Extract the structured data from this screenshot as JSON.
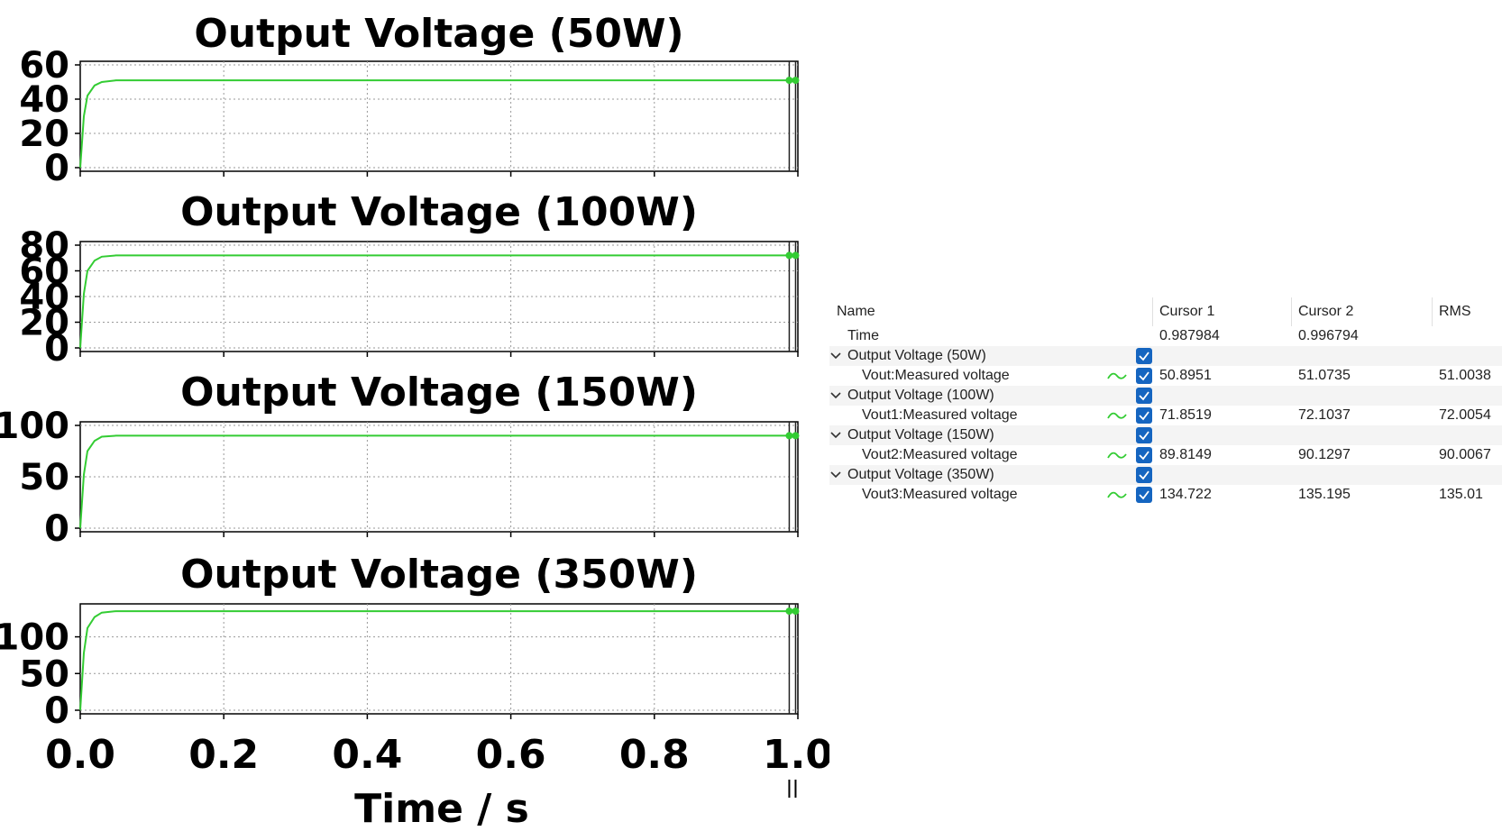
{
  "charts": [
    {
      "title": "Output Voltage (50W)",
      "yticks": [
        "60",
        "40",
        "20",
        "0"
      ]
    },
    {
      "title": "Output Voltage (100W)",
      "yticks": [
        "80",
        "60",
        "40",
        "20",
        "0"
      ]
    },
    {
      "title": "Output Voltage (150W)",
      "yticks": [
        "100",
        "50",
        "0"
      ]
    },
    {
      "title": "Output Voltage (350W)",
      "yticks": [
        "100",
        "50",
        "0"
      ]
    }
  ],
  "xaxis": {
    "label": "Time / s",
    "ticks": [
      "0.0",
      "0.2",
      "0.4",
      "0.6",
      "0.8",
      "1.0"
    ]
  },
  "chart_data": [
    {
      "type": "line",
      "title": "Output Voltage (50W)",
      "xlabel": "",
      "ylabel": "",
      "xlim": [
        0,
        1
      ],
      "ylim": [
        0,
        60
      ],
      "yticks": [
        0,
        20,
        40,
        60
      ],
      "grid": true,
      "series": [
        {
          "x": [
            0,
            0.005,
            0.01,
            0.02,
            0.03,
            0.05,
            0.1,
            0.5,
            1.0
          ],
          "y": [
            0,
            30,
            42,
            48,
            50,
            51,
            51,
            51,
            51
          ],
          "color": "#33cc33"
        }
      ],
      "cursors": [
        0.987984,
        0.996794
      ]
    },
    {
      "type": "line",
      "title": "Output Voltage (100W)",
      "xlabel": "",
      "ylabel": "",
      "xlim": [
        0,
        1
      ],
      "ylim": [
        0,
        80
      ],
      "yticks": [
        0,
        20,
        40,
        60,
        80
      ],
      "grid": true,
      "series": [
        {
          "x": [
            0,
            0.005,
            0.01,
            0.02,
            0.03,
            0.05,
            0.1,
            0.5,
            1.0
          ],
          "y": [
            0,
            42,
            60,
            68,
            71,
            72,
            72,
            72,
            72
          ],
          "color": "#33cc33"
        }
      ],
      "cursors": [
        0.987984,
        0.996794
      ]
    },
    {
      "type": "line",
      "title": "Output Voltage (150W)",
      "xlabel": "",
      "ylabel": "",
      "xlim": [
        0,
        1
      ],
      "ylim": [
        0,
        100
      ],
      "yticks": [
        0,
        50,
        100
      ],
      "grid": true,
      "series": [
        {
          "x": [
            0,
            0.005,
            0.01,
            0.02,
            0.03,
            0.05,
            0.1,
            0.5,
            1.0
          ],
          "y": [
            0,
            52,
            75,
            85,
            89,
            90,
            90,
            90,
            90
          ],
          "color": "#33cc33"
        }
      ],
      "cursors": [
        0.987984,
        0.996794
      ]
    },
    {
      "type": "line",
      "title": "Output Voltage (350W)",
      "xlabel": "Time / s",
      "ylabel": "",
      "xlim": [
        0,
        1
      ],
      "ylim": [
        0,
        140
      ],
      "yticks": [
        0,
        50,
        100
      ],
      "grid": true,
      "series": [
        {
          "x": [
            0,
            0.005,
            0.01,
            0.02,
            0.03,
            0.05,
            0.1,
            0.5,
            1.0
          ],
          "y": [
            0,
            78,
            112,
            127,
            133,
            135,
            135,
            135,
            135
          ],
          "color": "#33cc33"
        }
      ],
      "cursors": [
        0.987984,
        0.996794
      ]
    }
  ],
  "table": {
    "headers": {
      "name": "Name",
      "cursor1": "Cursor 1",
      "cursor2": "Cursor 2",
      "rms": "RMS"
    },
    "rows": [
      {
        "kind": "signal",
        "label": "Time",
        "cursor1": "0.987984",
        "cursor2": "0.996794",
        "rms": ""
      },
      {
        "kind": "group",
        "label": "Output Voltage (50W)"
      },
      {
        "kind": "signal",
        "label": "Vout:Measured voltage",
        "cursor1": "50.8951",
        "cursor2": "51.0735",
        "rms": "51.0038"
      },
      {
        "kind": "group",
        "label": "Output Voltage (100W)"
      },
      {
        "kind": "signal",
        "label": "Vout1:Measured voltage",
        "cursor1": "71.8519",
        "cursor2": "72.1037",
        "rms": "72.0054"
      },
      {
        "kind": "group",
        "label": "Output Voltage (150W)"
      },
      {
        "kind": "signal",
        "label": "Vout2:Measured voltage",
        "cursor1": "89.8149",
        "cursor2": "90.1297",
        "rms": "90.0067"
      },
      {
        "kind": "group",
        "label": "Output Voltage (350W)"
      },
      {
        "kind": "signal",
        "label": "Vout3:Measured voltage",
        "cursor1": "134.722",
        "cursor2": "135.195",
        "rms": "135.01"
      }
    ]
  },
  "colors": {
    "trace": "#33cc33",
    "checkbox": "#1565c0",
    "group_row": "#f4f4f4"
  }
}
